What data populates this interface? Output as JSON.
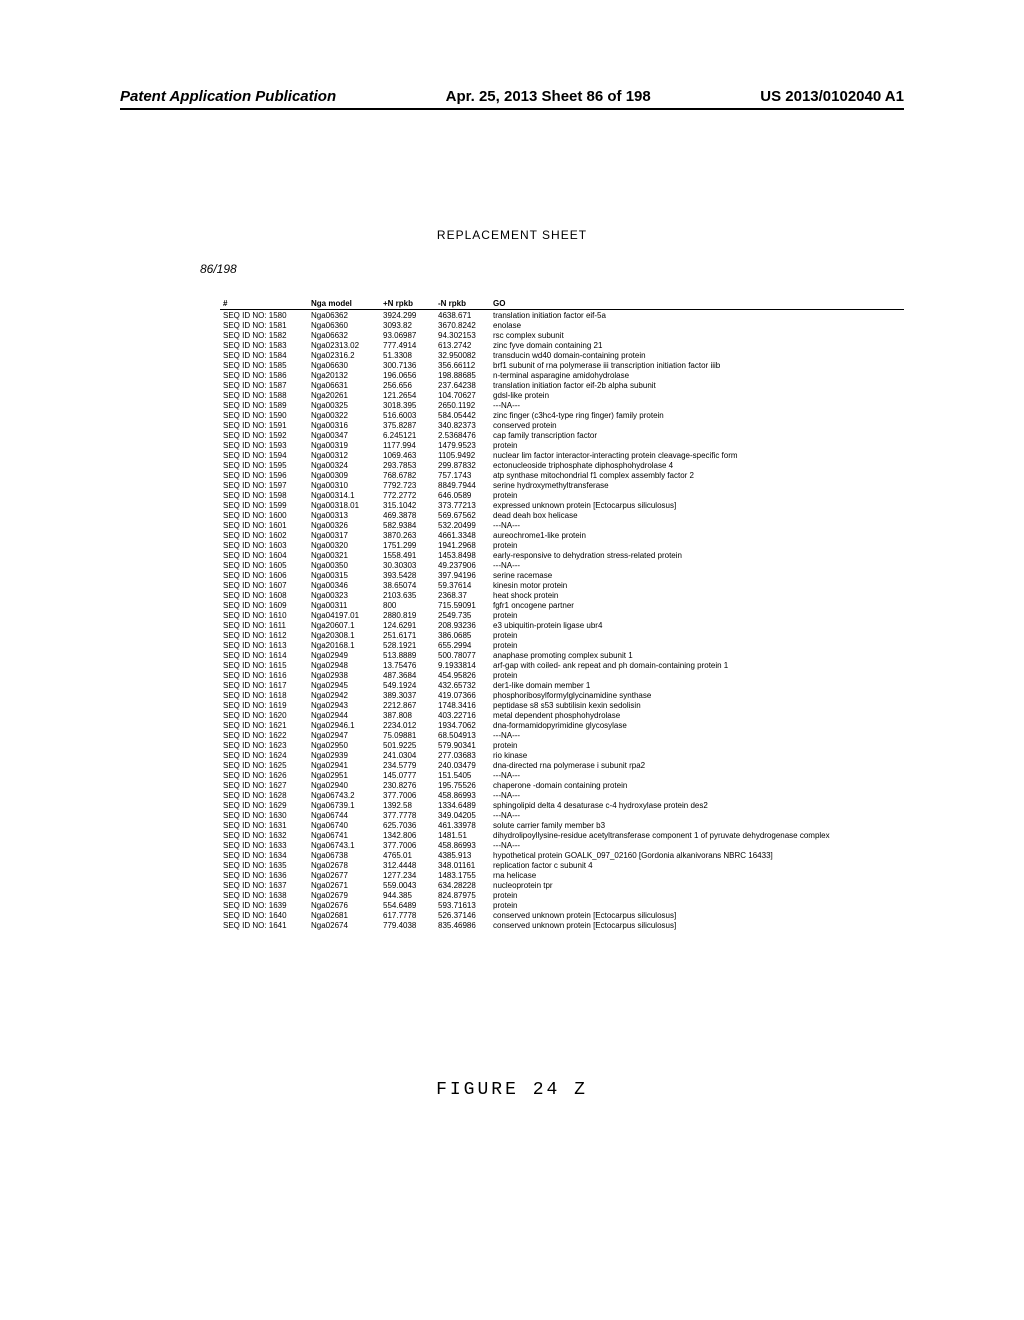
{
  "header": {
    "left": "Patent Application Publication",
    "mid": "Apr. 25, 2013  Sheet 86 of 198",
    "right": "US 2013/0102040 A1"
  },
  "replacement_sheet": "REPLACEMENT SHEET",
  "sheet_number": "86/198",
  "figure_label": "FIGURE 24 Z",
  "table": {
    "columns": [
      "#",
      "Nga model",
      "+N rpkb",
      "-N rpkb",
      "GO"
    ],
    "rows": [
      [
        "SEQ ID NO: 1580",
        "Nga06362",
        "3924.299",
        "4638.671",
        "translation initiation factor eif-5a"
      ],
      [
        "SEQ ID NO: 1581",
        "Nga06360",
        "3093.82",
        "3670.8242",
        "enolase"
      ],
      [
        "SEQ ID NO: 1582",
        "Nga06632",
        "93.06987",
        "94.302153",
        "rsc complex subunit"
      ],
      [
        "SEQ ID NO: 1583",
        "Nga02313.02",
        "777.4914",
        "613.2742",
        "zinc fyve domain containing 21"
      ],
      [
        "SEQ ID NO: 1584",
        "Nga02316.2",
        "51.3308",
        "32.950082",
        "transducin wd40 domain-containing protein"
      ],
      [
        "SEQ ID NO: 1585",
        "Nga06630",
        "300.7136",
        "356.66112",
        "brf1 subunit of rna polymerase iii transcription initiation factor iiib"
      ],
      [
        "SEQ ID NO: 1586",
        "Nga20132",
        "196.0656",
        "198.88685",
        "n-terminal asparagine amidohydrolase"
      ],
      [
        "SEQ ID NO: 1587",
        "Nga06631",
        "256.656",
        "237.64238",
        "translation initiation factor eif-2b alpha subunit"
      ],
      [
        "SEQ ID NO: 1588",
        "Nga20261",
        "121.2654",
        "104.70627",
        "gdsl-like protein"
      ],
      [
        "SEQ ID NO: 1589",
        "Nga00325",
        "3018.395",
        "2650.1192",
        "---NA---"
      ],
      [
        "SEQ ID NO: 1590",
        "Nga00322",
        "516.6003",
        "584.05442",
        "zinc finger (c3hc4-type ring finger) family protein"
      ],
      [
        "SEQ ID NO: 1591",
        "Nga00316",
        "375.8287",
        "340.82373",
        "conserved protein"
      ],
      [
        "SEQ ID NO: 1592",
        "Nga00347",
        "6.245121",
        "2.5368476",
        "cap family transcription factor"
      ],
      [
        "SEQ ID NO: 1593",
        "Nga00319",
        "1177.994",
        "1479.9523",
        "protein"
      ],
      [
        "SEQ ID NO: 1594",
        "Nga00312",
        "1069.463",
        "1105.9492",
        "nuclear lim factor interactor-interacting protein cleavage-specific form"
      ],
      [
        "SEQ ID NO: 1595",
        "Nga00324",
        "293.7853",
        "299.87832",
        "ectonucleoside triphosphate diphosphohydrolase 4"
      ],
      [
        "SEQ ID NO: 1596",
        "Nga00309",
        "768.6782",
        "757.1743",
        "atp synthase mitochondrial f1 complex assembly factor 2"
      ],
      [
        "SEQ ID NO: 1597",
        "Nga00310",
        "7792.723",
        "8849.7944",
        "serine hydroxymethyltransferase"
      ],
      [
        "SEQ ID NO: 1598",
        "Nga00314.1",
        "772.2772",
        "646.0589",
        "protein"
      ],
      [
        "SEQ ID NO: 1599",
        "Nga00318.01",
        "315.1042",
        "373.77213",
        "expressed unknown protein [Ectocarpus siliculosus]"
      ],
      [
        "SEQ ID NO: 1600",
        "Nga00313",
        "469.3878",
        "569.67562",
        "dead deah box helicase"
      ],
      [
        "SEQ ID NO: 1601",
        "Nga00326",
        "582.9384",
        "532.20499",
        "---NA---"
      ],
      [
        "SEQ ID NO: 1602",
        "Nga00317",
        "3870.263",
        "4661.3348",
        "aureochrome1-like protein"
      ],
      [
        "SEQ ID NO: 1603",
        "Nga00320",
        "1751.299",
        "1941.2968",
        "protein"
      ],
      [
        "SEQ ID NO: 1604",
        "Nga00321",
        "1558.491",
        "1453.8498",
        "early-responsive to dehydration stress-related protein"
      ],
      [
        "SEQ ID NO: 1605",
        "Nga00350",
        "30.30303",
        "49.237906",
        "---NA---"
      ],
      [
        "SEQ ID NO: 1606",
        "Nga00315",
        "393.5428",
        "397.94196",
        "serine racemase"
      ],
      [
        "SEQ ID NO: 1607",
        "Nga00346",
        "38.65074",
        "59.37614",
        "kinesin motor protein"
      ],
      [
        "SEQ ID NO: 1608",
        "Nga00323",
        "2103.635",
        "2368.37",
        "heat shock protein"
      ],
      [
        "SEQ ID NO: 1609",
        "Nga00311",
        "800",
        "715.59091",
        "fgfr1 oncogene partner"
      ],
      [
        "SEQ ID NO: 1610",
        "Nga04197.01",
        "2880.819",
        "2549.735",
        "protein"
      ],
      [
        "SEQ ID NO: 1611",
        "Nga20607.1",
        "124.6291",
        "208.93236",
        "e3 ubiquitin-protein ligase ubr4"
      ],
      [
        "SEQ ID NO: 1612",
        "Nga20308.1",
        "251.6171",
        "386.0685",
        "protein"
      ],
      [
        "SEQ ID NO: 1613",
        "Nga20168.1",
        "528.1921",
        "655.2994",
        "protein"
      ],
      [
        "SEQ ID NO: 1614",
        "Nga02949",
        "513.8889",
        "500.78077",
        "anaphase promoting complex subunit 1"
      ],
      [
        "SEQ ID NO: 1615",
        "Nga02948",
        "13.75476",
        "9.1933814",
        "arf-gap with coiled- ank repeat and ph domain-containing protein 1"
      ],
      [
        "SEQ ID NO: 1616",
        "Nga02938",
        "487.3684",
        "454.95826",
        "protein"
      ],
      [
        "SEQ ID NO: 1617",
        "Nga02945",
        "549.1924",
        "432.65732",
        "der1-like domain member 1"
      ],
      [
        "SEQ ID NO: 1618",
        "Nga02942",
        "389.3037",
        "419.07366",
        "phosphoribosylformylglycinamidine synthase"
      ],
      [
        "SEQ ID NO: 1619",
        "Nga02943",
        "2212.867",
        "1748.3416",
        "peptidase s8 s53 subtilisin kexin sedolisin"
      ],
      [
        "SEQ ID NO: 1620",
        "Nga02944",
        "387.808",
        "403.22716",
        "metal dependent phosphohydrolase"
      ],
      [
        "SEQ ID NO: 1621",
        "Nga02946.1",
        "2234.012",
        "1934.7062",
        "dna-formamidopyrimidine glycosylase"
      ],
      [
        "SEQ ID NO: 1622",
        "Nga02947",
        "75.09881",
        "68.504913",
        "---NA---"
      ],
      [
        "SEQ ID NO: 1623",
        "Nga02950",
        "501.9225",
        "579.90341",
        "protein"
      ],
      [
        "SEQ ID NO: 1624",
        "Nga02939",
        "241.0304",
        "277.03683",
        "rio kinase"
      ],
      [
        "SEQ ID NO: 1625",
        "Nga02941",
        "234.5779",
        "240.03479",
        "dna-directed rna polymerase i subunit rpa2"
      ],
      [
        "SEQ ID NO: 1626",
        "Nga02951",
        "145.0777",
        "151.5405",
        "---NA---"
      ],
      [
        "SEQ ID NO: 1627",
        "Nga02940",
        "230.8276",
        "195.75526",
        "chaperone -domain containing protein"
      ],
      [
        "SEQ ID NO: 1628",
        "Nga06743.2",
        "377.7006",
        "458.86993",
        "---NA---"
      ],
      [
        "SEQ ID NO: 1629",
        "Nga06739.1",
        "1392.58",
        "1334.6489",
        "sphingolipid delta 4 desaturase c-4 hydroxylase protein des2"
      ],
      [
        "SEQ ID NO: 1630",
        "Nga06744",
        "377.7778",
        "349.04205",
        "---NA---"
      ],
      [
        "SEQ ID NO: 1631",
        "Nga06740",
        "625.7036",
        "461.33978",
        "solute carrier family member b3"
      ],
      [
        "SEQ ID NO: 1632",
        "Nga06741",
        "1342.806",
        "1481.51",
        "dihydrolipoyllysine-residue acetyltransferase component 1 of pyruvate dehydrogenase complex"
      ],
      [
        "SEQ ID NO: 1633",
        "Nga06743.1",
        "377.7006",
        "458.86993",
        "---NA---"
      ],
      [
        "SEQ ID NO: 1634",
        "Nga06738",
        "4765.01",
        "4385.913",
        "hypothetical protein GOALK_097_02160 [Gordonia alkanivorans NBRC 16433]"
      ],
      [
        "SEQ ID NO: 1635",
        "Nga02678",
        "312.4448",
        "348.01161",
        "replication factor c subunit 4"
      ],
      [
        "SEQ ID NO: 1636",
        "Nga02677",
        "1277.234",
        "1483.1755",
        "rna helicase"
      ],
      [
        "SEQ ID NO: 1637",
        "Nga02671",
        "559.0043",
        "634.28228",
        "nucleoprotein tpr"
      ],
      [
        "SEQ ID NO: 1638",
        "Nga02679",
        "944.385",
        "824.87975",
        "protein"
      ],
      [
        "SEQ ID NO: 1639",
        "Nga02676",
        "554.6489",
        "593.71613",
        "protein"
      ],
      [
        "SEQ ID NO: 1640",
        "Nga02681",
        "617.7778",
        "526.37146",
        "conserved unknown protein [Ectocarpus siliculosus]"
      ],
      [
        "SEQ ID NO: 1641",
        "Nga02674",
        "779.4038",
        "835.46986",
        "conserved unknown protein [Ectocarpus siliculosus]"
      ]
    ]
  }
}
